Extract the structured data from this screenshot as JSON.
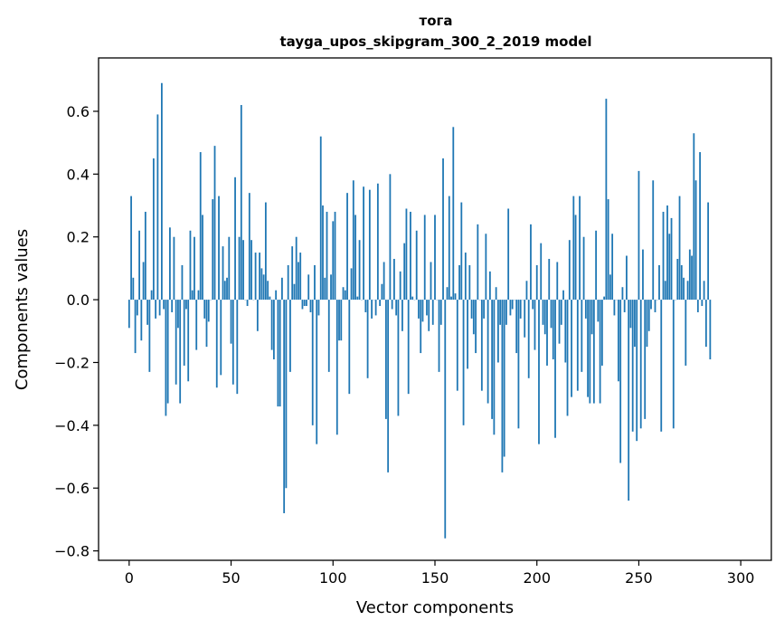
{
  "chart_data": {
    "type": "bar",
    "title": "тога",
    "subtitle": "tayga_upos_skipgram_300_2_2019 model",
    "xlabel": "Vector components",
    "ylabel": "Components values",
    "xlim": [
      -15,
      315
    ],
    "ylim": [
      -0.83,
      0.77
    ],
    "x_ticks": [
      0,
      50,
      100,
      150,
      200,
      250,
      300
    ],
    "y_ticks": [
      -0.8,
      -0.6,
      -0.4,
      -0.2,
      0.0,
      0.2,
      0.4,
      0.6
    ],
    "y_tick_labels": [
      "−0.8",
      "−0.6",
      "−0.4",
      "−0.2",
      "0.0",
      "0.2",
      "0.4",
      "0.6"
    ],
    "bar_color": "#1f77b4",
    "values": [
      -0.09,
      0.33,
      0.07,
      -0.17,
      -0.05,
      0.22,
      -0.13,
      0.12,
      0.28,
      -0.08,
      -0.23,
      0.03,
      0.45,
      -0.06,
      0.59,
      -0.05,
      0.69,
      -0.03,
      -0.37,
      -0.33,
      0.23,
      -0.04,
      0.2,
      -0.27,
      -0.09,
      -0.33,
      0.11,
      -0.21,
      -0.03,
      -0.26,
      0.22,
      0.03,
      0.2,
      -0.16,
      0.03,
      0.47,
      0.27,
      -0.06,
      -0.15,
      -0.07,
      0.0,
      0.32,
      0.49,
      -0.28,
      0.33,
      -0.24,
      0.17,
      0.06,
      0.07,
      0.2,
      -0.14,
      -0.27,
      0.39,
      -0.3,
      0.2,
      0.62,
      0.19,
      0.0,
      -0.02,
      0.34,
      0.19,
      0.0,
      0.15,
      -0.1,
      0.15,
      0.1,
      0.08,
      0.31,
      0.06,
      0.01,
      -0.16,
      -0.19,
      0.03,
      -0.34,
      -0.34,
      0.07,
      -0.68,
      -0.6,
      0.11,
      -0.23,
      0.17,
      0.05,
      0.2,
      0.12,
      0.15,
      -0.03,
      -0.02,
      -0.02,
      0.08,
      -0.04,
      -0.4,
      0.11,
      -0.46,
      -0.05,
      0.52,
      0.3,
      0.07,
      0.28,
      -0.23,
      0.08,
      0.25,
      0.28,
      -0.43,
      -0.13,
      -0.13,
      0.04,
      0.03,
      0.34,
      -0.3,
      0.1,
      0.38,
      0.27,
      0.01,
      0.19,
      0.0,
      0.36,
      -0.04,
      -0.25,
      0.35,
      -0.06,
      0.0,
      -0.05,
      0.37,
      -0.02,
      0.05,
      0.12,
      -0.38,
      -0.55,
      0.4,
      -0.03,
      0.13,
      -0.05,
      -0.37,
      0.09,
      -0.1,
      0.18,
      0.29,
      -0.3,
      0.28,
      0.01,
      0.0,
      0.22,
      -0.06,
      -0.17,
      -0.07,
      0.27,
      -0.05,
      -0.1,
      0.12,
      -0.08,
      0.27,
      0.0,
      -0.23,
      -0.08,
      0.45,
      -0.76,
      0.04,
      0.33,
      0.01,
      0.55,
      0.02,
      -0.29,
      0.11,
      0.31,
      -0.4,
      0.15,
      -0.22,
      0.11,
      -0.06,
      -0.11,
      -0.17,
      0.24,
      0.0,
      -0.29,
      -0.06,
      0.21,
      -0.33,
      0.09,
      -0.38,
      -0.43,
      0.04,
      -0.2,
      -0.08,
      -0.55,
      -0.5,
      -0.08,
      0.29,
      -0.05,
      -0.03,
      0.0,
      -0.17,
      -0.41,
      -0.06,
      0.0,
      -0.12,
      0.06,
      -0.25,
      0.24,
      -0.03,
      -0.16,
      0.11,
      -0.46,
      0.18,
      -0.08,
      -0.11,
      -0.21,
      0.13,
      -0.09,
      -0.19,
      -0.44,
      0.12,
      -0.14,
      -0.08,
      0.03,
      -0.2,
      -0.37,
      0.19,
      -0.31,
      0.33,
      0.27,
      -0.29,
      0.33,
      -0.23,
      0.2,
      -0.06,
      -0.31,
      -0.33,
      -0.11,
      -0.33,
      0.22,
      -0.07,
      -0.33,
      -0.21,
      0.01,
      0.64,
      0.32,
      0.08,
      0.21,
      -0.05,
      0.0,
      -0.26,
      -0.52,
      0.04,
      -0.04,
      0.14,
      -0.64,
      -0.09,
      -0.42,
      -0.15,
      -0.45,
      0.41,
      -0.41,
      0.16,
      -0.38,
      -0.15,
      -0.1,
      -0.03,
      0.38,
      -0.04,
      0.0,
      0.11,
      -0.42,
      0.28,
      0.06,
      0.3,
      0.21,
      0.26,
      -0.41,
      0.0,
      0.13,
      0.33,
      0.11,
      0.07,
      -0.21,
      0.06,
      0.16,
      0.14,
      0.53,
      0.38,
      -0.04,
      0.47,
      -0.02,
      0.06,
      -0.15,
      0.31,
      -0.19
    ]
  }
}
